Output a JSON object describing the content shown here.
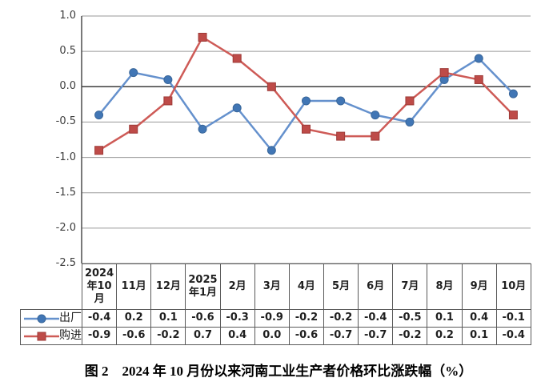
{
  "chart_data": {
    "type": "line",
    "title": "图 2　2024 年 10 月份以来河南工业生产者价格环比涨跌幅（%）",
    "categories": [
      "2024年10月",
      "11月",
      "12月",
      "2025年1月",
      "2月",
      "3月",
      "4月",
      "5月",
      "6月",
      "7月",
      "8月",
      "9月",
      "10月"
    ],
    "series": [
      {
        "id": "chuchang",
        "name": "出厂",
        "marker": "circle",
        "line_color": "#6591CD",
        "marker_color": "#4176B5",
        "marker_stroke": "#3A679A",
        "values": [
          -0.4,
          0.2,
          0.1,
          -0.6,
          -0.3,
          -0.9,
          -0.2,
          -0.2,
          -0.4,
          -0.5,
          0.1,
          0.4,
          -0.1
        ]
      },
      {
        "id": "goujin",
        "name": "购进",
        "marker": "square",
        "line_color": "#CE5B57",
        "marker_color": "#BE4B48",
        "marker_stroke": "#9E3B38",
        "values": [
          -0.9,
          -0.6,
          -0.2,
          0.7,
          0.4,
          0.0,
          -0.6,
          -0.7,
          -0.7,
          -0.2,
          0.2,
          0.1,
          -0.4
        ]
      }
    ],
    "ylim": [
      -2.5,
      1.0
    ],
    "ytick_labels": [
      "1.0",
      "0.5",
      "0.0",
      "-0.5",
      "-1.0",
      "-1.5",
      "-2.0",
      "-2.5"
    ],
    "grid": true,
    "legend_position": "table-left",
    "data_table_shown": true
  },
  "style": {
    "background": "#ffffff",
    "grid_color": "#9a9a9a",
    "zero_line_color": "#3c3c3c",
    "axis_color": "#404040",
    "table_border_color": "#595959",
    "text_color": "#1f1f1f"
  }
}
